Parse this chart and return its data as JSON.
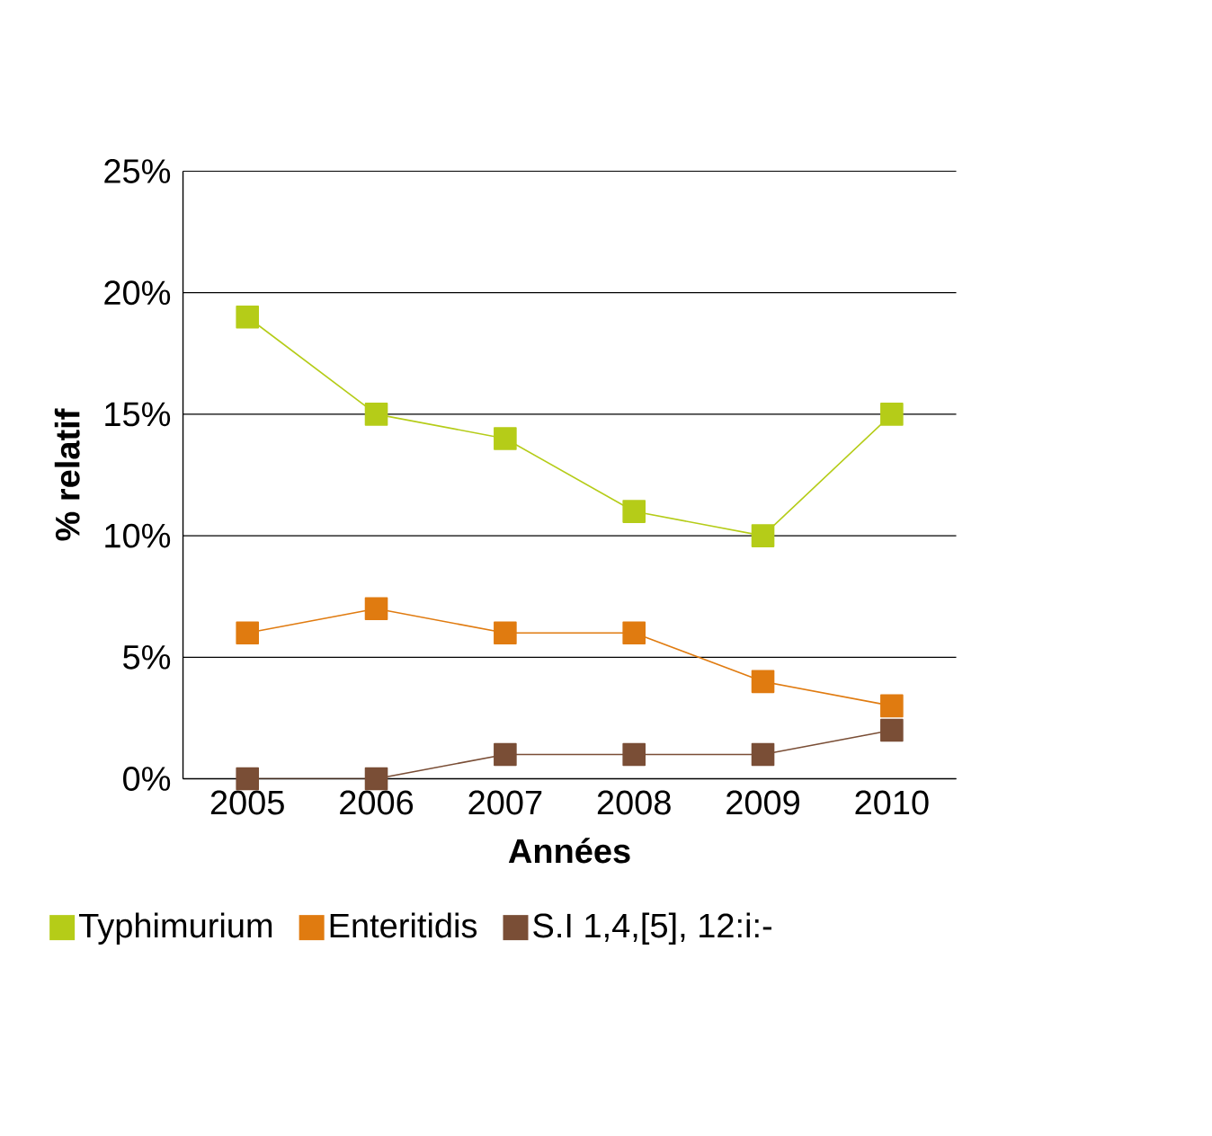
{
  "chart_data": {
    "type": "line",
    "xlabel": "Années",
    "ylabel": "% relatif",
    "categories": [
      "2005",
      "2006",
      "2007",
      "2008",
      "2009",
      "2010"
    ],
    "series": [
      {
        "name": "Typhimurium",
        "color": "#b5cc18",
        "values": [
          19,
          15,
          14,
          11,
          10,
          15
        ]
      },
      {
        "name": "Enteritidis",
        "color": "#e07b10",
        "values": [
          6,
          7,
          6,
          6,
          4,
          3
        ]
      },
      {
        "name": "S.I 1,4,[5], 12:i:-",
        "color": "#7a4e36",
        "values": [
          0,
          0,
          1,
          1,
          1,
          2
        ]
      }
    ],
    "ylim": [
      0,
      25
    ],
    "yticks": [
      {
        "value": 0,
        "label": "0%"
      },
      {
        "value": 5,
        "label": "5%"
      },
      {
        "value": 10,
        "label": "10%"
      },
      {
        "value": 15,
        "label": "15%"
      },
      {
        "value": 20,
        "label": "20%"
      },
      {
        "value": 25,
        "label": "25%"
      }
    ],
    "grid": "y",
    "legend": "bottom",
    "marker": "square",
    "line_style": "solid"
  }
}
